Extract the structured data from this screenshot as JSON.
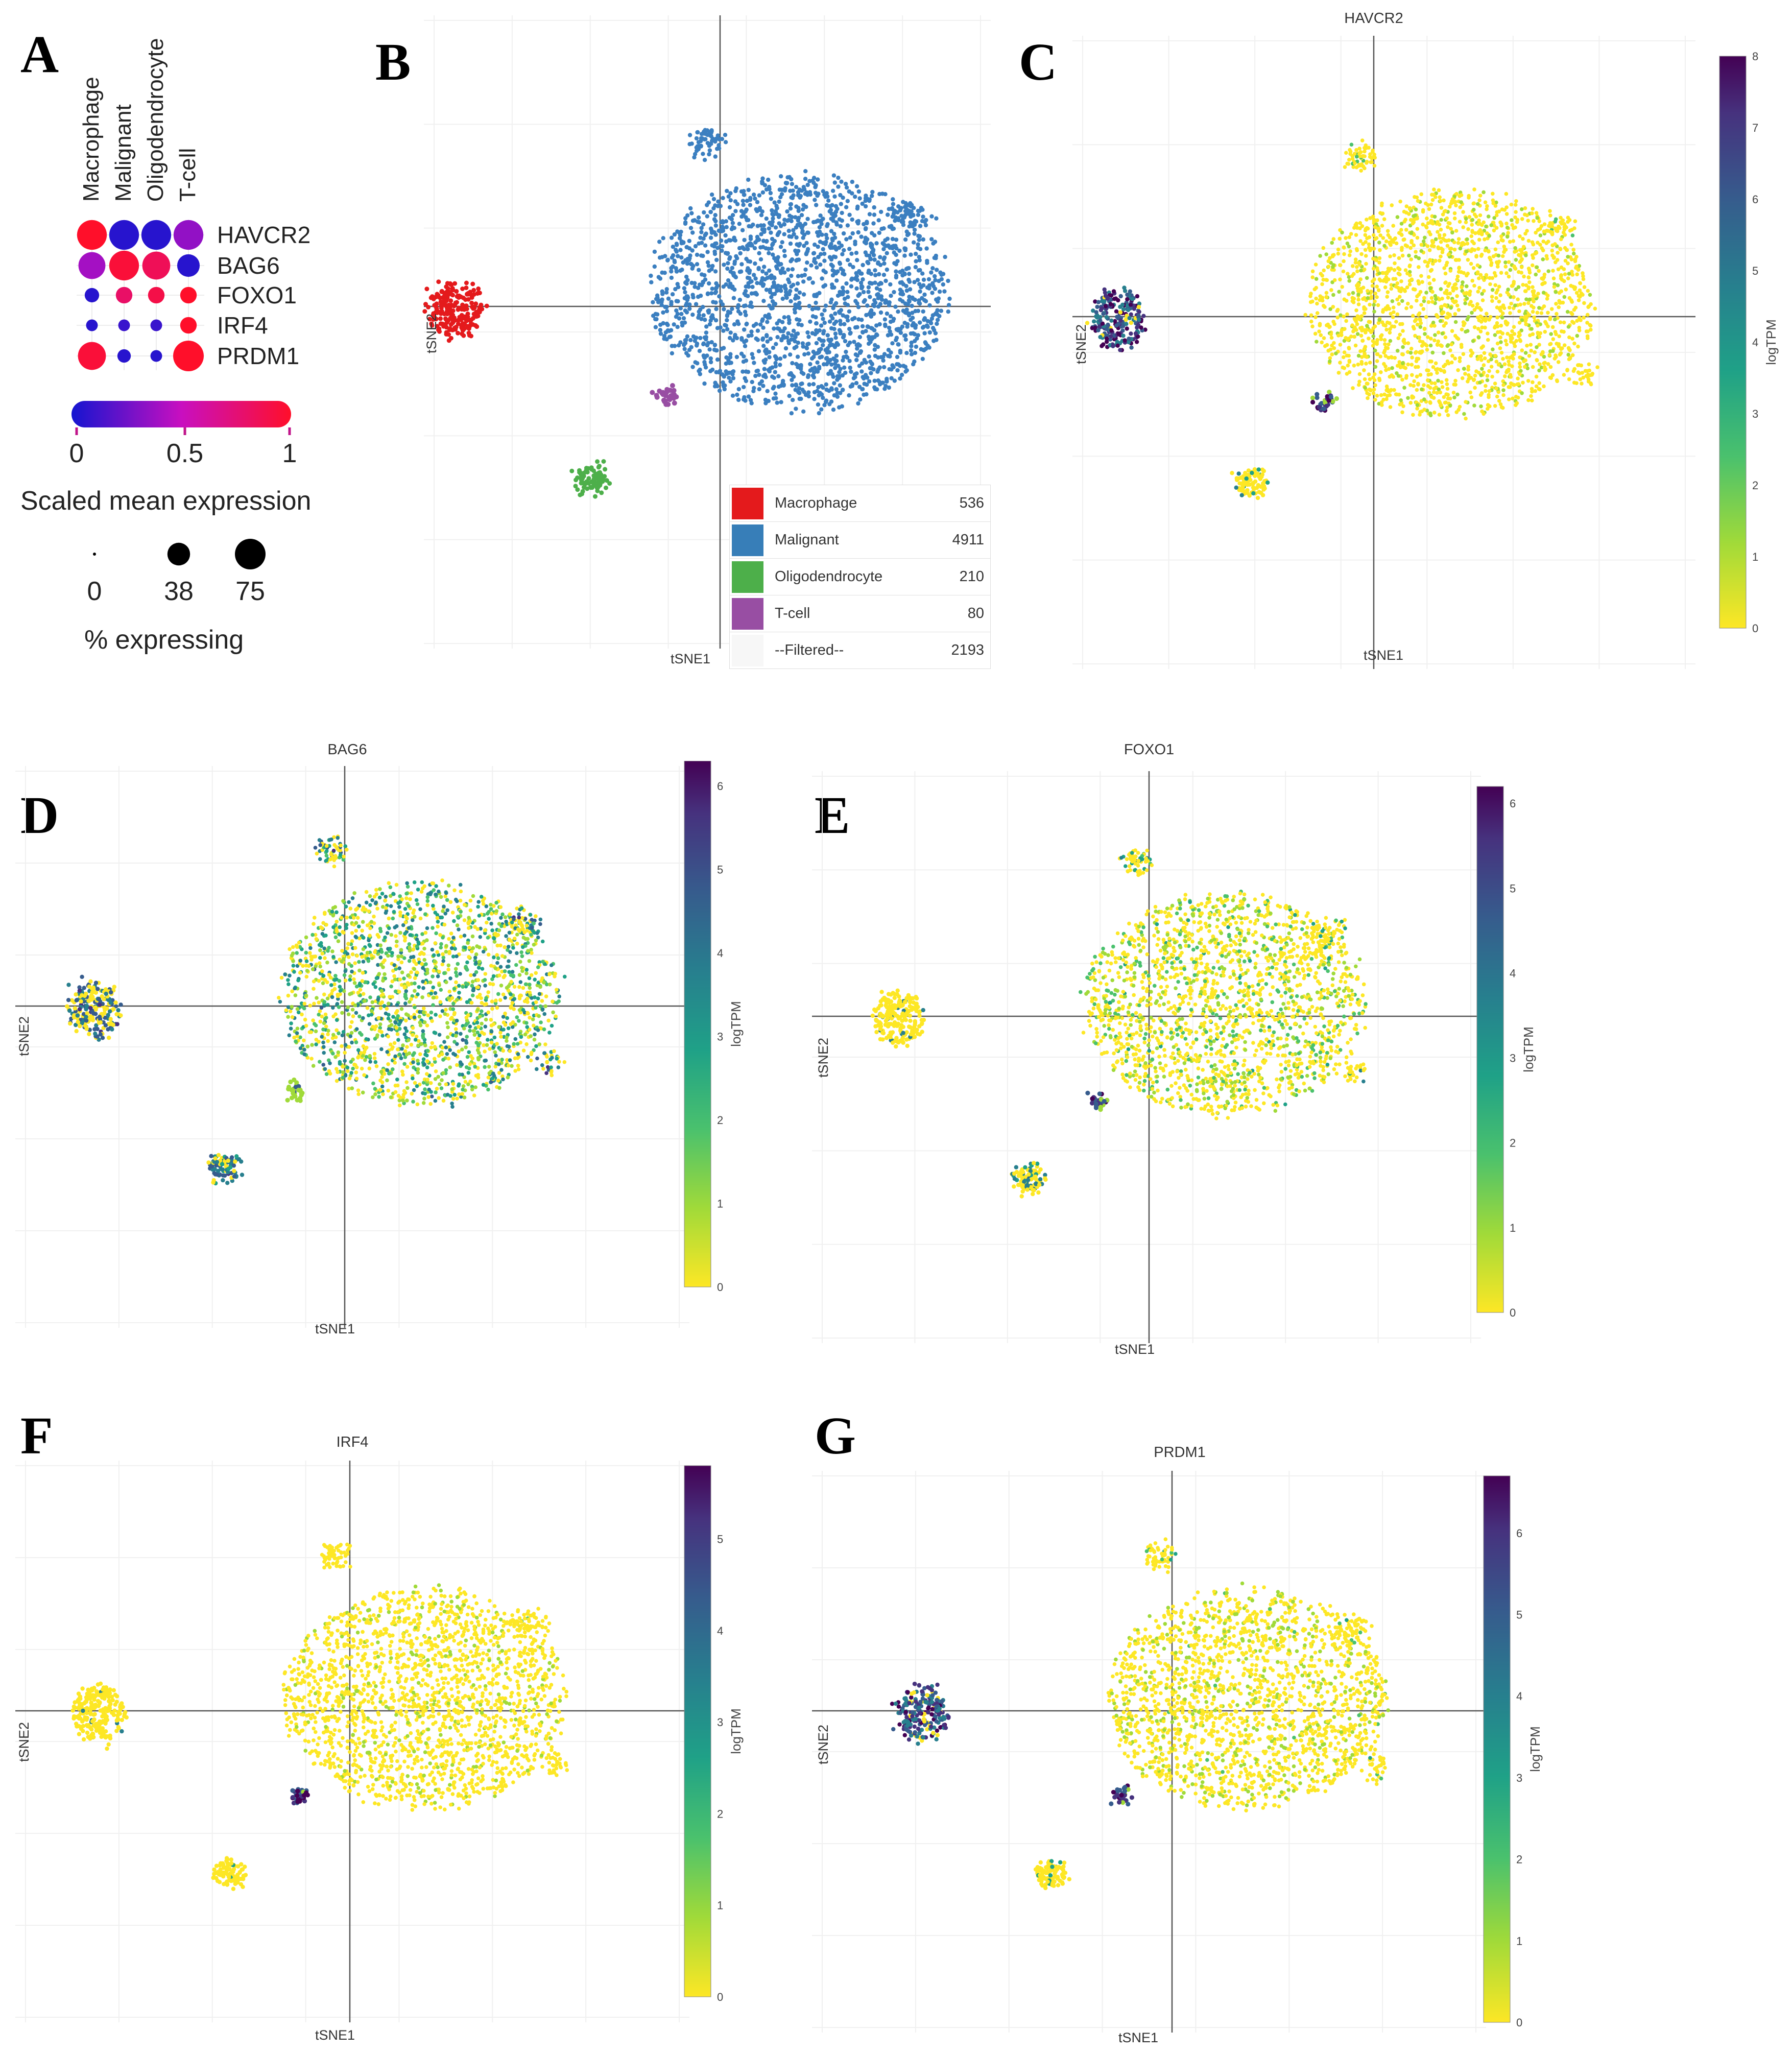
{
  "panels": {
    "A": {
      "letter": "A",
      "clusters": [
        "Macrophage",
        "Malignant",
        "Oligodendrocyte",
        "T-cell"
      ],
      "genes": [
        "HAVCR2",
        "BAG6",
        "FOXO1",
        "IRF4",
        "PRDM1"
      ],
      "scaled_mean_expression": [
        [
          1.0,
          0.05,
          0.05,
          0.35
        ],
        [
          0.4,
          0.95,
          0.85,
          0.05
        ],
        [
          0.05,
          0.8,
          0.9,
          1.0
        ],
        [
          0.05,
          0.1,
          0.1,
          1.0
        ],
        [
          0.95,
          0.05,
          0.05,
          1.0
        ]
      ],
      "percent_expressing": [
        [
          70,
          70,
          70,
          70
        ],
        [
          55,
          70,
          60,
          35
        ],
        [
          10,
          15,
          15,
          15
        ],
        [
          5,
          5,
          5,
          15
        ],
        [
          60,
          8,
          5,
          75
        ]
      ],
      "colorbar": {
        "ticks": [
          "0",
          "0.5",
          "1"
        ],
        "title": "Scaled mean expression"
      },
      "size_legend": {
        "ticks": [
          "0",
          "38",
          "75"
        ],
        "values": [
          0,
          38,
          75
        ],
        "title": "% expressing"
      }
    },
    "B": {
      "letter": "B",
      "xlabel": "tSNE1",
      "ylabel": "tSNE2",
      "legend": [
        {
          "name": "Macrophage",
          "count": "536",
          "color": "#e41a1c"
        },
        {
          "name": "Malignant",
          "count": "4911",
          "color": "#377eb8"
        },
        {
          "name": "Oligodendrocyte",
          "count": "210",
          "color": "#4daf4a"
        },
        {
          "name": "T-cell",
          "count": "80",
          "color": "#984ea3"
        },
        {
          "name": "--Filtered--",
          "count": "2193",
          "color": "#f7f7f7"
        }
      ]
    },
    "C": {
      "letter": "C",
      "title": "HAVCR2",
      "xlabel": "tSNE1",
      "ylabel": "tSNE2",
      "cbar_title": "logTPM",
      "cbar_max": 8,
      "cbar_ticks": [
        "0",
        "1",
        "2",
        "3",
        "4",
        "5",
        "6",
        "7",
        "8"
      ]
    },
    "D": {
      "letter": "D",
      "title": "BAG6",
      "xlabel": "tSNE1",
      "ylabel": "tSNE2",
      "cbar_title": "logTPM",
      "cbar_max": 6.3,
      "cbar_ticks": [
        "0",
        "1",
        "2",
        "3",
        "4",
        "5",
        "6"
      ]
    },
    "E": {
      "letter": "E",
      "title": "FOXO1",
      "xlabel": "tSNE1",
      "ylabel": "tSNE2",
      "cbar_title": "logTPM",
      "cbar_max": 6.2,
      "cbar_ticks": [
        "0",
        "1",
        "2",
        "3",
        "4",
        "5",
        "6"
      ]
    },
    "F": {
      "letter": "F",
      "title": "IRF4",
      "xlabel": "tSNE1",
      "ylabel": "tSNE2",
      "cbar_title": "logTPM",
      "cbar_max": 5.8,
      "cbar_ticks": [
        "0",
        "1",
        "2",
        "3",
        "4",
        "5"
      ]
    },
    "G": {
      "letter": "G",
      "title": "PRDM1",
      "xlabel": "tSNE1",
      "ylabel": "tSNE2",
      "cbar_title": "logTPM",
      "cbar_max": 6.7,
      "cbar_ticks": [
        "0",
        "1",
        "2",
        "3",
        "4",
        "5",
        "6"
      ]
    }
  },
  "chart_data": [
    {
      "type": "dotplot",
      "panel": "A",
      "categories": [
        "Macrophage",
        "Malignant",
        "Oligodendrocyte",
        "T-cell"
      ],
      "genes": [
        "HAVCR2",
        "BAG6",
        "FOXO1",
        "IRF4",
        "PRDM1"
      ],
      "color_metric": "Scaled mean expression",
      "size_metric": "% expressing",
      "color_range": [
        0,
        1
      ],
      "size_range": [
        0,
        75
      ]
    },
    {
      "type": "scatter",
      "panel": "B",
      "xlabel": "tSNE1",
      "ylabel": "tSNE2",
      "series": [
        {
          "name": "Macrophage",
          "count": 536
        },
        {
          "name": "Malignant",
          "count": 4911
        },
        {
          "name": "Oligodendrocyte",
          "count": 210
        },
        {
          "name": "T-cell",
          "count": 80
        },
        {
          "name": "--Filtered--",
          "count": 2193
        }
      ]
    },
    {
      "type": "scatter",
      "panel": "C",
      "title": "HAVCR2",
      "color_metric": "logTPM",
      "color_range": [
        0,
        8
      ],
      "high_in": [
        "Macrophage",
        "T-cell"
      ]
    },
    {
      "type": "scatter",
      "panel": "D",
      "title": "BAG6",
      "color_metric": "logTPM",
      "color_range": [
        0,
        6.3
      ],
      "high_in": [
        "Malignant",
        "Oligodendrocyte"
      ]
    },
    {
      "type": "scatter",
      "panel": "E",
      "title": "FOXO1",
      "color_metric": "logTPM",
      "color_range": [
        0,
        6.2
      ],
      "high_in": [
        "Malignant",
        "T-cell"
      ]
    },
    {
      "type": "scatter",
      "panel": "F",
      "title": "IRF4",
      "color_metric": "logTPM",
      "color_range": [
        0,
        5.8
      ],
      "high_in": [
        "T-cell"
      ]
    },
    {
      "type": "scatter",
      "panel": "G",
      "title": "PRDM1",
      "color_metric": "logTPM",
      "color_range": [
        0,
        6.7
      ],
      "high_in": [
        "Macrophage",
        "T-cell"
      ]
    }
  ]
}
